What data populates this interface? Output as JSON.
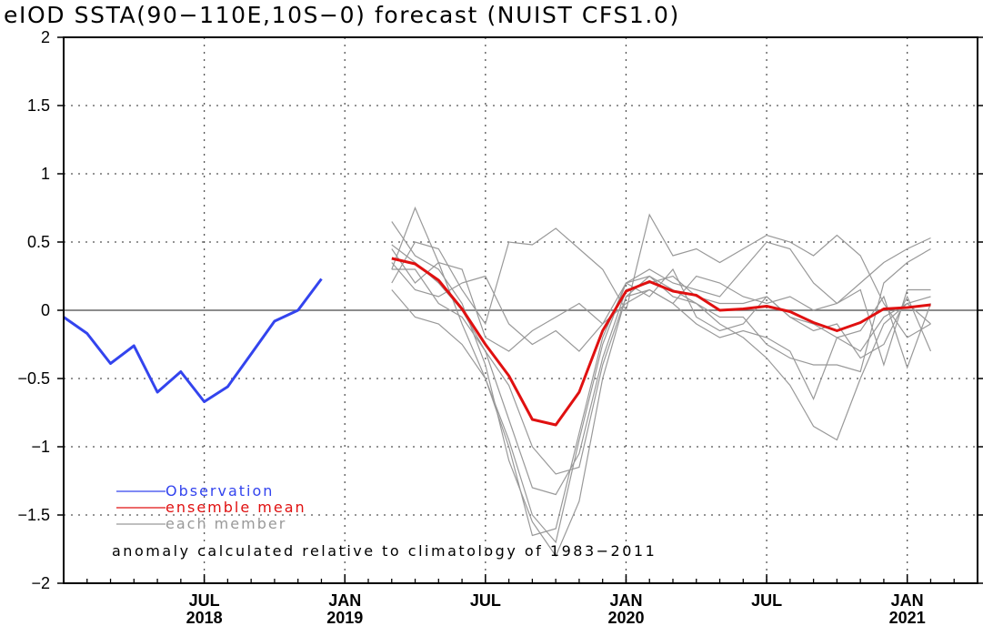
{
  "chart_data": {
    "type": "line",
    "title": "eIOD SSTA(90−110E,10S−0) forecast (NUIST CFS1.0)",
    "ylim": [
      -2,
      2
    ],
    "yticks": [
      {
        "value": 2,
        "label": "2"
      },
      {
        "value": 1.5,
        "label": "1.5"
      },
      {
        "value": 1,
        "label": "1"
      },
      {
        "value": 0.5,
        "label": "0.5"
      },
      {
        "value": 0,
        "label": "0"
      },
      {
        "value": -0.5,
        "label": "−0.5"
      },
      {
        "value": -1,
        "label": "−1"
      },
      {
        "value": -1.5,
        "label": "−1.5"
      },
      {
        "value": -2,
        "label": "−2"
      }
    ],
    "xlim": [
      "2018-01",
      "2021-04"
    ],
    "xticks": [
      {
        "x": "2018-07",
        "month": "JUL",
        "year": "2018"
      },
      {
        "x": "2019-01",
        "month": "JAN",
        "year": "2019"
      },
      {
        "x": "2019-07",
        "month": "JUL",
        "year": ""
      },
      {
        "x": "2020-01",
        "month": "JAN",
        "year": "2020"
      },
      {
        "x": "2020-07",
        "month": "JUL",
        "year": ""
      },
      {
        "x": "2021-01",
        "month": "JAN",
        "year": "2021"
      }
    ],
    "annotation": "anomaly calculated relative to climatology of 1983−2011",
    "series": [
      {
        "name": "Observation",
        "color": "#3344ee",
        "x": [
          "2018-01",
          "2018-02",
          "2018-03",
          "2018-04",
          "2018-05",
          "2018-06",
          "2018-07",
          "2018-08",
          "2018-09",
          "2018-10",
          "2018-11",
          "2018-12",
          "2019-01",
          "2019-02"
        ],
        "values": [
          -0.05,
          -0.17,
          -0.39,
          -0.26,
          -0.6,
          -0.45,
          -0.67,
          -0.56,
          -0.32,
          -0.08,
          0.0,
          0.23,
          null,
          null
        ]
      },
      {
        "name": "ensemble mean",
        "color": "#e01010",
        "x": [
          "2019-03",
          "2019-04",
          "2019-05",
          "2019-06",
          "2019-07",
          "2019-08",
          "2019-09",
          "2019-10",
          "2019-11",
          "2019-12",
          "2020-01",
          "2020-02",
          "2020-03",
          "2020-04",
          "2020-05",
          "2020-06",
          "2020-07",
          "2020-08",
          "2020-09",
          "2020-10",
          "2020-11",
          "2020-12",
          "2021-01",
          "2021-02"
        ],
        "values": [
          0.38,
          0.34,
          0.22,
          0.01,
          -0.25,
          -0.48,
          -0.8,
          -0.84,
          -0.6,
          -0.15,
          0.14,
          0.21,
          0.14,
          0.11,
          0.0,
          0.01,
          0.03,
          -0.01,
          -0.09,
          -0.15,
          -0.09,
          0.01,
          0.02,
          0.04
        ]
      },
      {
        "name": "each member",
        "color": "#999999",
        "x": [
          "2019-03",
          "2019-04",
          "2019-05",
          "2019-06",
          "2019-07",
          "2019-08",
          "2019-09",
          "2019-10",
          "2019-11",
          "2019-12",
          "2020-01",
          "2020-02",
          "2020-03",
          "2020-04",
          "2020-05",
          "2020-06",
          "2020-07",
          "2020-08",
          "2020-09",
          "2020-10",
          "2020-11",
          "2020-12",
          "2021-01",
          "2021-02"
        ],
        "members": [
          [
            0.65,
            0.4,
            0.3,
            0.05,
            -0.4,
            -1.1,
            -1.55,
            -1.8,
            -1.4,
            -0.5,
            0.1,
            0.25,
            0.15,
            0.05,
            -0.1,
            -0.2,
            -0.35,
            -0.55,
            -0.85,
            -0.95,
            -0.5,
            -0.1,
            0.05,
            0.1
          ],
          [
            0.48,
            0.35,
            0.2,
            0.0,
            -0.3,
            -0.8,
            -1.3,
            -1.35,
            -1.05,
            -0.35,
            0.15,
            0.2,
            0.25,
            0.1,
            0.05,
            0.05,
            0.1,
            -0.05,
            -0.1,
            -0.2,
            -0.3,
            -0.05,
            0.05,
            -0.1
          ],
          [
            0.3,
            0.75,
            0.35,
            -0.1,
            -0.5,
            -1.0,
            -1.65,
            -1.6,
            -0.9,
            -0.2,
            0.2,
            0.3,
            0.2,
            0.15,
            0.1,
            0.3,
            0.5,
            0.45,
            0.2,
            0.05,
            0.2,
            0.35,
            0.45,
            0.53
          ],
          [
            0.2,
            0.5,
            0.45,
            0.15,
            -0.1,
            0.5,
            0.48,
            0.6,
            0.45,
            0.3,
            0.0,
            0.7,
            0.4,
            0.45,
            0.35,
            0.45,
            0.55,
            0.5,
            0.4,
            0.55,
            0.4,
            0.05,
            -0.2,
            -0.1
          ],
          [
            0.45,
            0.2,
            0.35,
            0.3,
            -0.2,
            -0.3,
            -0.15,
            -0.05,
            0.05,
            -0.1,
            0.05,
            0.15,
            0.05,
            -0.1,
            -0.2,
            -0.15,
            -0.2,
            -0.3,
            -0.65,
            -0.2,
            -0.15,
            0.1,
            -0.42,
            0.05
          ],
          [
            0.35,
            0.15,
            0.1,
            0.2,
            0.25,
            -0.1,
            -0.25,
            -0.15,
            -0.3,
            -0.1,
            0.2,
            0.25,
            0.1,
            0.05,
            -0.05,
            -0.05,
            -0.25,
            -0.35,
            -0.4,
            -0.4,
            -0.45,
            0.2,
            0.35,
            0.45
          ],
          [
            0.15,
            -0.05,
            -0.1,
            -0.25,
            -0.5,
            -0.95,
            -1.5,
            -1.7,
            -0.95,
            -0.25,
            0.2,
            0.1,
            0.3,
            -0.05,
            -0.15,
            -0.1,
            0.1,
            -0.05,
            -0.15,
            -0.1,
            -0.35,
            -0.25,
            0.1,
            -0.3
          ],
          [
            0.3,
            0.3,
            0.05,
            -0.05,
            -0.3,
            -0.55,
            -1.0,
            -1.2,
            -1.15,
            -0.4,
            0.1,
            0.15,
            0.05,
            0.25,
            0.2,
            0.1,
            0.05,
            0.1,
            0.0,
            0.05,
            0.15,
            -0.4,
            0.15,
            0.15
          ]
        ]
      }
    ]
  }
}
